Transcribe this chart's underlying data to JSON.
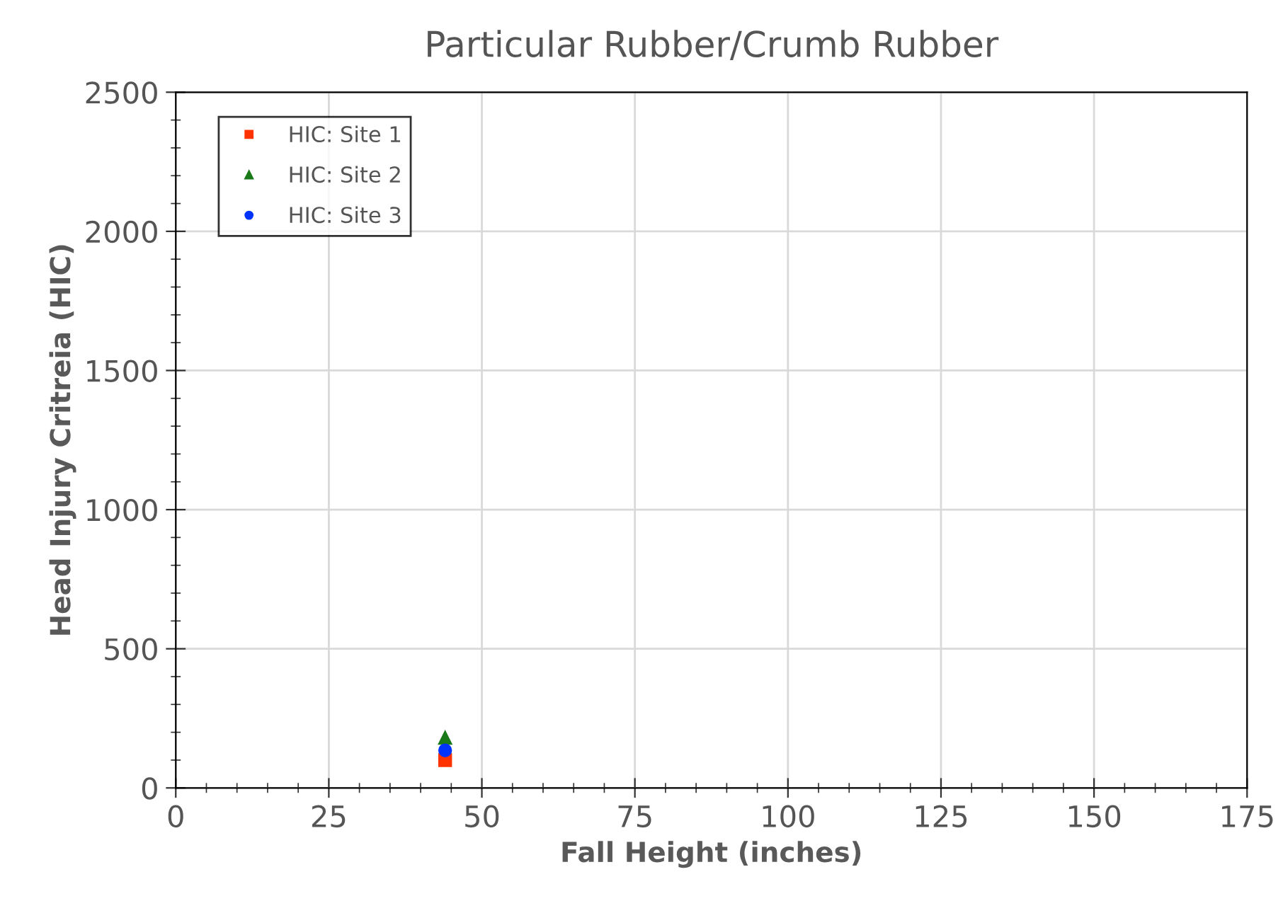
{
  "chart_data": {
    "type": "scatter",
    "title": "Particular Rubber/Crumb Rubber",
    "xlabel": "Fall Height (inches)",
    "ylabel": "Head Injury Critreia (HIC)",
    "x": [
      44
    ],
    "series": [
      {
        "name": "HIC: Site 1",
        "color": "#ff3300",
        "values": [
          100
        ],
        "marker": "square"
      },
      {
        "name": "HIC: Site 2",
        "color": "#1a7a1a",
        "values": [
          180
        ],
        "marker": "triangle"
      },
      {
        "name": "HIC: Site 3",
        "color": "#0033ff",
        "values": [
          135
        ],
        "marker": "circle"
      }
    ],
    "xlim": [
      0,
      175
    ],
    "xticks": [
      0,
      25,
      50,
      75,
      100,
      125,
      150,
      175
    ],
    "ylim": [
      0,
      2500
    ],
    "yticks": [
      0,
      500,
      1000,
      1500,
      2000,
      2500
    ],
    "grid": true,
    "legend": "top left"
  }
}
